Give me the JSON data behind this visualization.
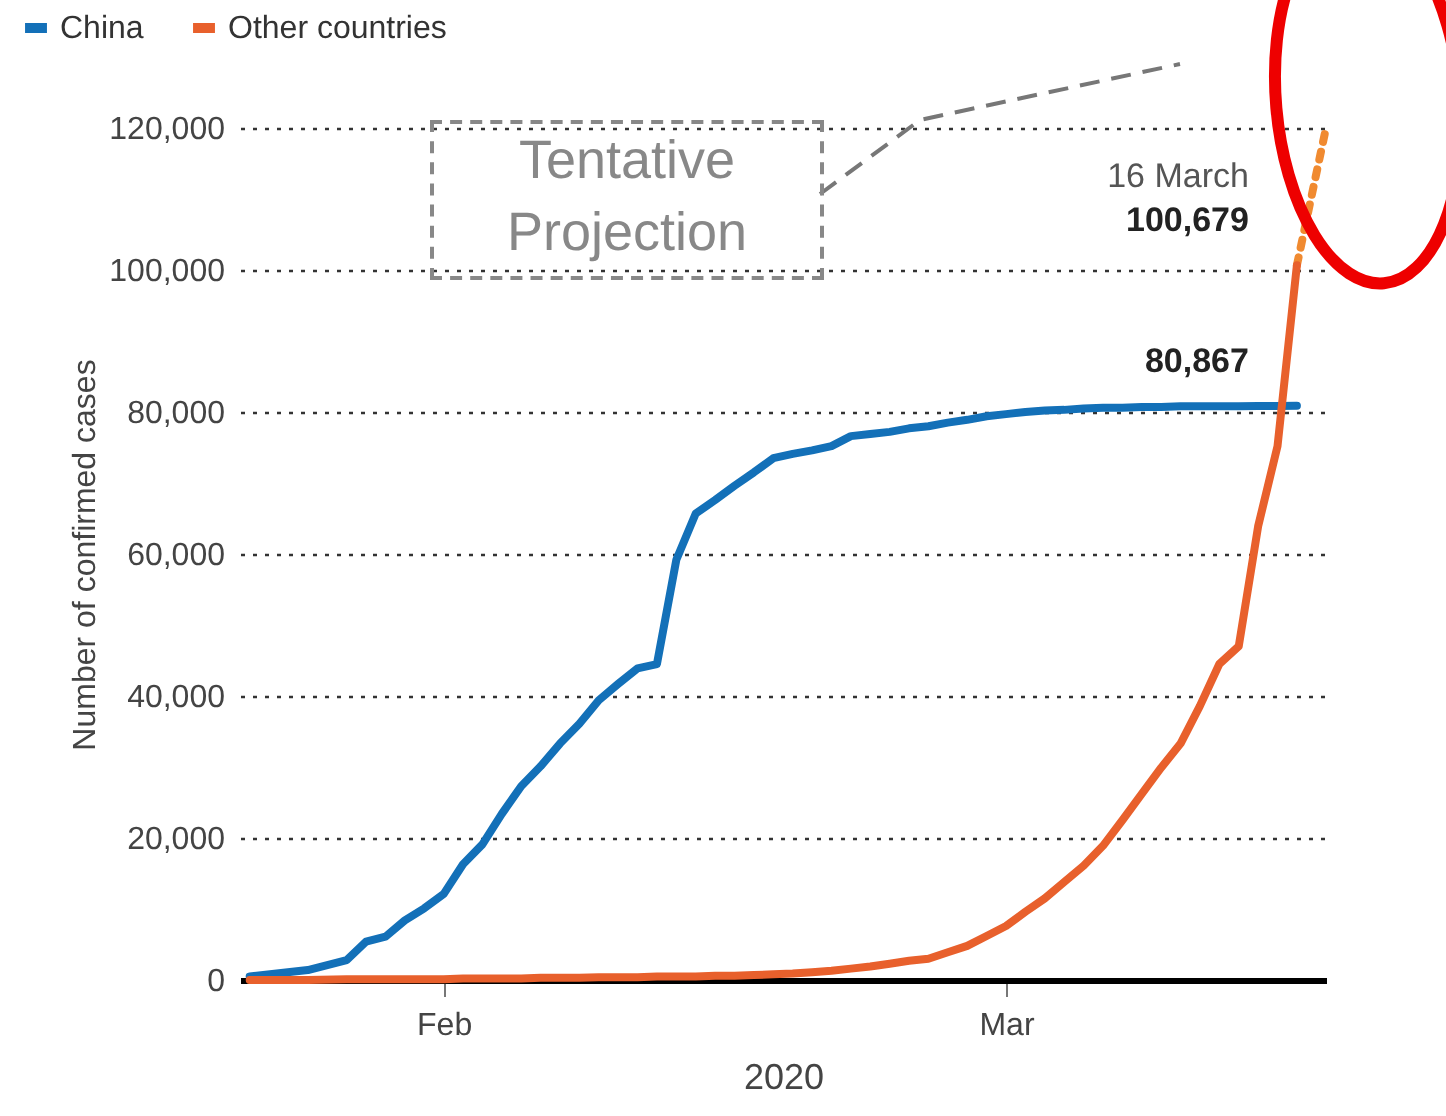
{
  "chart_data": {
    "type": "line",
    "xlabel": "2020",
    "ylabel": "Number of confirmed cases",
    "x": [
      "2020-01-22",
      "2020-01-25",
      "2020-01-27",
      "2020-01-28",
      "2020-01-29",
      "2020-01-30",
      "2020-01-31",
      "2020-02-01",
      "2020-02-02",
      "2020-02-03",
      "2020-02-04",
      "2020-02-05",
      "2020-02-06",
      "2020-02-07",
      "2020-02-08",
      "2020-02-09",
      "2020-02-10",
      "2020-02-11",
      "2020-02-12",
      "2020-02-13",
      "2020-02-14",
      "2020-02-15",
      "2020-02-16",
      "2020-02-17",
      "2020-02-18",
      "2020-02-19",
      "2020-02-20",
      "2020-02-21",
      "2020-02-22",
      "2020-02-23",
      "2020-02-24",
      "2020-02-25",
      "2020-02-26",
      "2020-02-27",
      "2020-02-28",
      "2020-02-29",
      "2020-03-01",
      "2020-03-02",
      "2020-03-03",
      "2020-03-04",
      "2020-03-05",
      "2020-03-06",
      "2020-03-07",
      "2020-03-08",
      "2020-03-09",
      "2020-03-10",
      "2020-03-11",
      "2020-03-12",
      "2020-03-13",
      "2020-03-14",
      "2020-03-15",
      "2020-03-16"
    ],
    "series": [
      {
        "name": "China",
        "color": "#1370b8",
        "values": [
          500,
          1400,
          2800,
          5400,
          6100,
          8400,
          10100,
          12100,
          16300,
          19100,
          23400,
          27300,
          30100,
          33300,
          36100,
          39400,
          41700,
          43900,
          44500,
          59200,
          65700,
          67600,
          69600,
          71500,
          73500,
          74100,
          74600,
          75200,
          76600,
          76900,
          77200,
          77700,
          78000,
          78500,
          78900,
          79400,
          79700,
          80000,
          80200,
          80300,
          80500,
          80600,
          80600,
          80700,
          80700,
          80800,
          80800,
          80800,
          80800,
          80850,
          80860,
          80867
        ]
      },
      {
        "name": "Other countries",
        "color": "#e8602c",
        "values": [
          0,
          0,
          100,
          100,
          100,
          100,
          100,
          100,
          200,
          200,
          200,
          200,
          300,
          300,
          300,
          400,
          400,
          400,
          500,
          500,
          500,
          600,
          600,
          700,
          800,
          900,
          1100,
          1300,
          1600,
          1900,
          2300,
          2700,
          3000,
          3900,
          4800,
          6200,
          7600,
          9600,
          11500,
          13800,
          16100,
          18900,
          22500,
          26200,
          29900,
          33300,
          38600,
          44500,
          47000,
          63900,
          75200,
          100679
        ]
      },
      {
        "color": "#f08a30",
        "line_style": "dotted",
        "x": [
          "2020-03-16",
          "2020-03-17T12:00"
        ],
        "values": [
          100679,
          120000
        ]
      }
    ],
    "xlim": [
      "2020-01-21T12:00",
      "2020-03-17T12:00"
    ],
    "xticks": [
      {
        "value": "2020-02-01",
        "label": "Feb"
      },
      {
        "value": "2020-03-01",
        "label": "Mar"
      }
    ],
    "ylim": [
      0,
      120000
    ],
    "yticks": [
      {
        "value": 0,
        "label": "0"
      },
      {
        "value": 20000,
        "label": "20,000"
      },
      {
        "value": 40000,
        "label": "40,000"
      },
      {
        "value": 60000,
        "label": "60,000"
      },
      {
        "value": 80000,
        "label": "80,000"
      },
      {
        "value": 100000,
        "label": "100,000"
      },
      {
        "value": 120000,
        "label": "120,000"
      }
    ],
    "grid": "y",
    "legend": "top left",
    "annotations": [
      {
        "text": "80,867",
        "x": "2020-03-16",
        "y": 80867
      },
      {
        "text": "100,679",
        "x": "2020-03-16",
        "y": 100679
      },
      {
        "text": "16 March",
        "x": "2020-03-16",
        "y": 100679
      },
      "Tentative Projection"
    ]
  }
}
